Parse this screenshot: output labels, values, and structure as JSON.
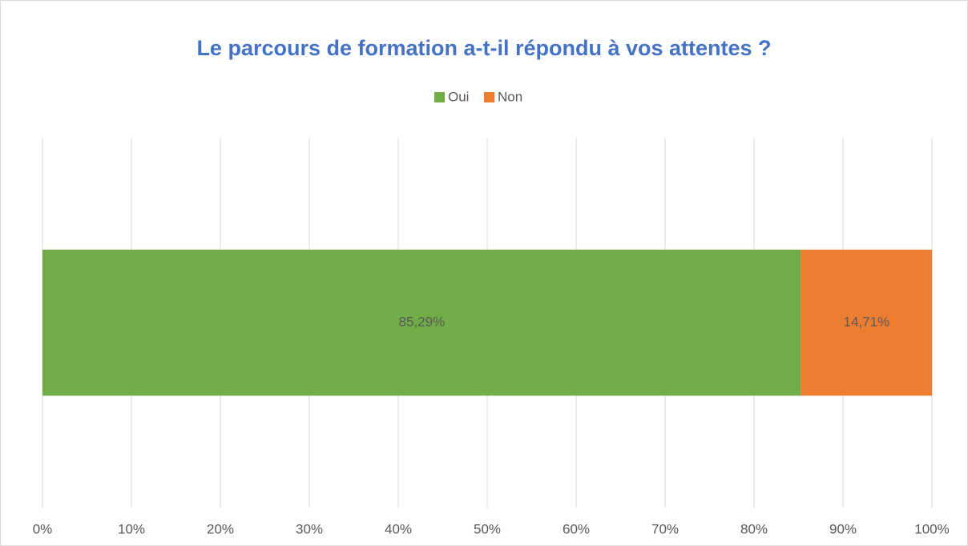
{
  "chart_data": {
    "type": "bar",
    "orientation": "horizontal",
    "stacked": true,
    "title": "Le parcours de formation a-t-il répondu à vos attentes ?",
    "categories": [
      null
    ],
    "series": [
      {
        "name": "Oui",
        "color": "#70ad47",
        "values": [
          85.29
        ],
        "value_labels": [
          "85,29%"
        ]
      },
      {
        "name": "Non",
        "color": "#ed7d31",
        "values": [
          14.71
        ],
        "value_labels": [
          "14,71%"
        ]
      }
    ],
    "xlim": [
      0,
      100
    ],
    "xticks": [
      {
        "value": 0,
        "label": "0%"
      },
      {
        "value": 10,
        "label": "10%"
      },
      {
        "value": 20,
        "label": "20%"
      },
      {
        "value": 30,
        "label": "30%"
      },
      {
        "value": 40,
        "label": "40%"
      },
      {
        "value": 50,
        "label": "50%"
      },
      {
        "value": 60,
        "label": "60%"
      },
      {
        "value": 70,
        "label": "70%"
      },
      {
        "value": 80,
        "label": "80%"
      },
      {
        "value": 90,
        "label": "90%"
      },
      {
        "value": 100,
        "label": "100%"
      }
    ],
    "grid": true,
    "legend": "top"
  }
}
